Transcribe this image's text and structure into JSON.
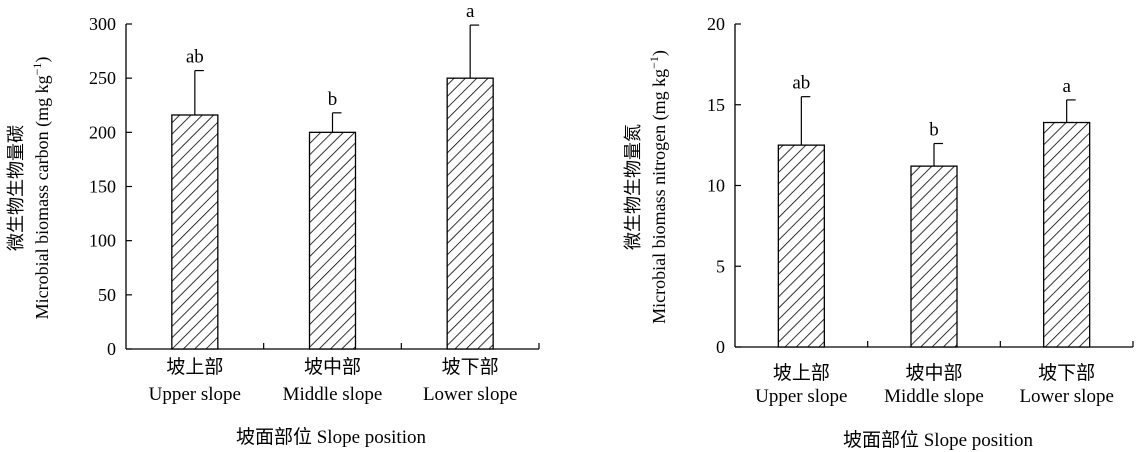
{
  "chart_data": [
    {
      "type": "bar",
      "categories": [
        {
          "cn": "坡上部",
          "en": "Upper slope"
        },
        {
          "cn": "坡中部",
          "en": "Middle slope"
        },
        {
          "cn": "坡下部",
          "en": "Lower slope"
        }
      ],
      "values": [
        216,
        200,
        250
      ],
      "errors": [
        41,
        18,
        49
      ],
      "significance": [
        "ab",
        "b",
        "a"
      ],
      "title": "",
      "xlabel": "坡面部位 Slope position",
      "ylabel_cn": "微生物生物量碳",
      "ylabel_en": "Microbial biomass carbon (mg kg",
      "ylabel_sup": "−1",
      "ylabel_close": ")",
      "ylim": [
        0,
        300
      ],
      "yticks": [
        0,
        50,
        100,
        150,
        200,
        250,
        300
      ],
      "bar_pattern": "diagonal-hatch",
      "grid": false
    },
    {
      "type": "bar",
      "categories": [
        {
          "cn": "坡上部",
          "en": "Upper slope"
        },
        {
          "cn": "坡中部",
          "en": "Middle slope"
        },
        {
          "cn": "坡下部",
          "en": "Lower slope"
        }
      ],
      "values": [
        12.5,
        11.2,
        13.9
      ],
      "errors": [
        3.0,
        1.4,
        1.4
      ],
      "significance": [
        "ab",
        "b",
        "a"
      ],
      "title": "",
      "xlabel": "坡面部位 Slope position",
      "ylabel_cn": "微生物生物量氮",
      "ylabel_en": "Microbial biomass nitrogen (mg kg",
      "ylabel_sup": "−1",
      "ylabel_close": ")",
      "ylim": [
        0,
        20
      ],
      "yticks": [
        0,
        5,
        10,
        15,
        20
      ],
      "bar_pattern": "diagonal-hatch",
      "grid": false
    }
  ]
}
